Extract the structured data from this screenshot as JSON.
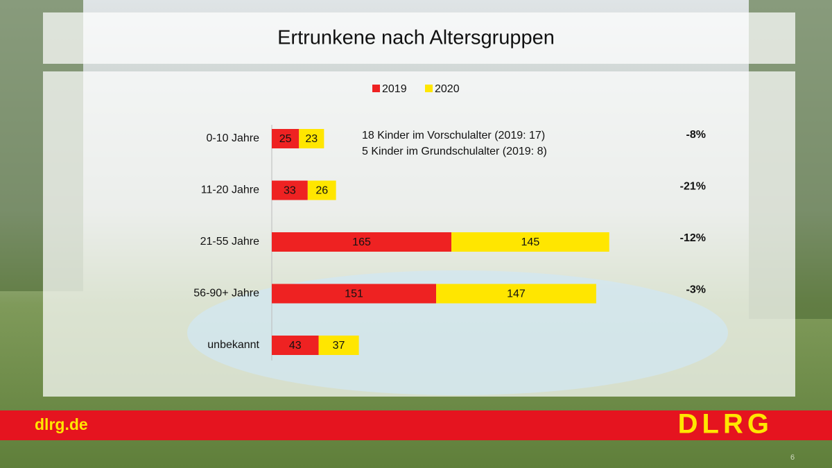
{
  "chart_data": {
    "type": "stacked-bar-horizontal",
    "title": "Ertrunkene nach Altersgruppen",
    "categories": [
      "0-10 Jahre",
      "11-20 Jahre",
      "21-55 Jahre",
      "56-90+ Jahre",
      "unbekannt"
    ],
    "series": [
      {
        "name": "2019",
        "color": "#ee2222",
        "values": [
          25,
          33,
          165,
          151,
          43
        ]
      },
      {
        "name": "2020",
        "color": "#ffe600",
        "values": [
          23,
          26,
          145,
          147,
          37
        ]
      }
    ],
    "change_labels": [
      "-8%",
      "-21%",
      "-12%",
      "-3%"
    ],
    "annotations": [
      "18 Kinder im Vorschulalter (2019: 17)",
      "5 Kinder im Grundschulalter (2019: 8)"
    ]
  },
  "footer": {
    "url": "dlrg.de",
    "logo": "DLRG",
    "page_number": "6"
  }
}
